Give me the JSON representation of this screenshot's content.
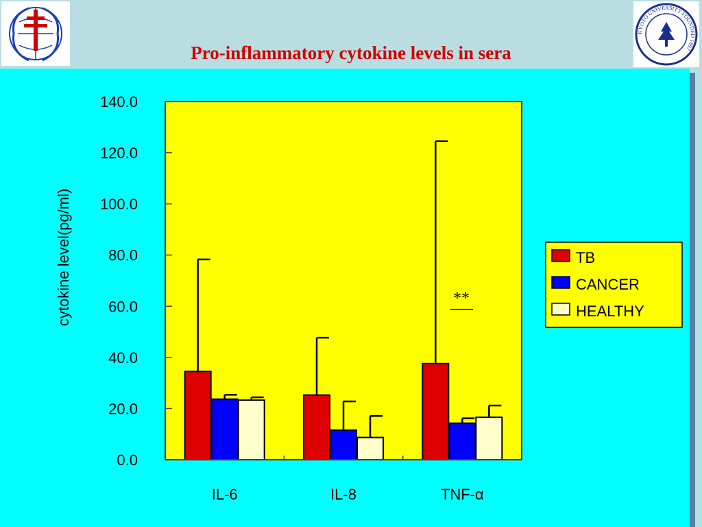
{
  "slide": {
    "title": "Pro-inflammatory cytokine levels in sera"
  },
  "logos": {
    "left_icon": "anti-tuberculosis-cross-emblem",
    "right_icon": "kyoto-university-seal",
    "right_text": "KYOTO UNIVERSITY FOUNDED 1897"
  },
  "colors": {
    "header_bg": "#b9dde0",
    "panel_bg": "#00ffff",
    "plot_bg": "#ffff00",
    "title": "#d00000"
  },
  "chart_data": {
    "type": "bar",
    "categories": [
      "IL-6",
      "IL-8",
      "TNF-α"
    ],
    "series": [
      {
        "name": "TB",
        "color": "#dd0000",
        "values": [
          34.5,
          25.3,
          37.6
        ],
        "error_upper": [
          78.3,
          47.7,
          124.5
        ]
      },
      {
        "name": "CANCER",
        "color": "#0000ff",
        "values": [
          23.7,
          11.6,
          14.3
        ],
        "error_upper": [
          25.4,
          22.8,
          16.2
        ]
      },
      {
        "name": "HEALTHY",
        "color": "#ffffcc",
        "values": [
          23.3,
          8.7,
          16.6
        ],
        "error_upper": [
          24.4,
          17.1,
          21.2
        ]
      }
    ],
    "ylabel": "cytokine level(pg/ml)",
    "xlabel": "",
    "ylim": [
      0,
      140
    ],
    "yticks": [
      "0.0",
      "20.0",
      "40.0",
      "60.0",
      "80.0",
      "100.0",
      "120.0",
      "140.0"
    ],
    "legend": {
      "position": "right",
      "entries": [
        "TB",
        "CANCER",
        "HEALTHY"
      ]
    },
    "annotation": {
      "text": "**",
      "category": "TNF-α",
      "underline": true
    },
    "grid": false
  }
}
